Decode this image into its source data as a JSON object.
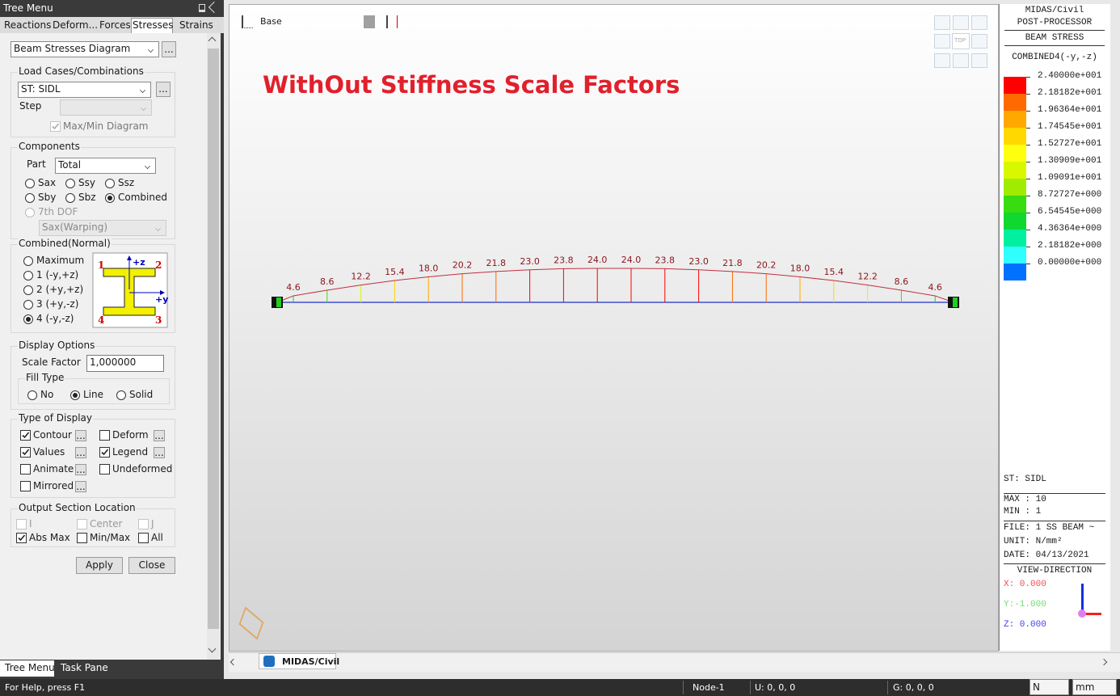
{
  "tree_menu": {
    "title": "Tree Menu",
    "tabs": [
      "Reactions",
      "Deform...",
      "Forces",
      "Stresses",
      "Strains"
    ],
    "active_tab": 3,
    "diagram_select": "Beam Stresses Diagram",
    "more": "...",
    "load_cases": {
      "legend": "Load Cases/Combinations",
      "select": "ST: SIDL",
      "step": "Step",
      "maxmin": "Max/Min Diagram",
      "maxmin_checked": true
    },
    "components": {
      "legend": "Components",
      "part": "Part",
      "part_select": "Total",
      "options": [
        "Sax",
        "Ssy",
        "Ssz",
        "Sby",
        "Sbz",
        "Combined"
      ],
      "selected": 5,
      "dof7": "7th DOF",
      "warping": "Sax(Warping)"
    },
    "combined": {
      "legend": "Combined(Normal)",
      "options": [
        "Maximum",
        "1 (-y,+z)",
        "2 (+y,+z)",
        "3 (+y,-z)",
        "4 (-y,-z)"
      ],
      "selected": 4,
      "corners": [
        "1",
        "2",
        "3",
        "4"
      ],
      "axes": [
        "+z",
        "+y"
      ]
    },
    "display": {
      "legend": "Display Options",
      "scale_label": "Scale Factor",
      "scale_value": "1,000000",
      "fill_legend": "Fill Type",
      "fill": [
        "No",
        "Line",
        "Solid"
      ],
      "fill_selected": 1
    },
    "type_of_display": {
      "legend": "Type of Display",
      "options": [
        "Contour",
        "Deform",
        "Values",
        "Legend",
        "Animate",
        "Undeformed",
        "Mirrored"
      ],
      "checked": [
        0,
        2,
        3
      ]
    },
    "output_location": {
      "legend": "Output Section Location",
      "options": [
        "I",
        "Center",
        "J",
        "Abs Max",
        "Min/Max",
        "All"
      ],
      "checked": [
        3
      ],
      "disabled": [
        0,
        1,
        2
      ]
    },
    "buttons": [
      "Apply",
      "Close"
    ],
    "bottom_tabs": [
      "Tree Menu",
      "Task Pane"
    ]
  },
  "viewport": {
    "layer": "Base",
    "view_cube": "TOP",
    "title": "WithOut Stiffness Scale Factors",
    "tab": "MIDAS/Civil",
    "diagram": {
      "values": [
        4.6,
        8.6,
        12.2,
        15.4,
        18,
        20.2,
        21.8,
        23,
        23.8,
        24,
        24,
        23.8,
        23,
        21.8,
        20.2,
        18,
        15.4,
        12.2,
        8.6,
        4.6
      ],
      "value_labels": [
        "4.6",
        "8.6",
        "12.2",
        "15.4",
        "18.0",
        "20.2",
        "21.8",
        "23.0",
        "23.8",
        "24.0",
        "24.0",
        "23.8",
        "23.0",
        "21.8",
        "20.2",
        "18.0",
        "15.4",
        "12.2",
        "8.6",
        "4.6"
      ]
    }
  },
  "legend_panel": {
    "program": "MIDAS/Civil",
    "module": "POST-PROCESSOR",
    "result": "BEAM STRESS",
    "component": "COMBINED4(-y,-z)",
    "labels": [
      "2.40000e+001",
      "2.18182e+001",
      "1.96364e+001",
      "1.74545e+001",
      "1.52727e+001",
      "1.30909e+001",
      "1.09091e+001",
      "8.72727e+000",
      "6.54545e+000",
      "4.36364e+000",
      "2.18182e+000",
      "0.00000e+000"
    ],
    "colors": [
      "#ff0000",
      "#ff6a00",
      "#ffa800",
      "#ffd800",
      "#ffff10",
      "#d8f800",
      "#a0ec00",
      "#38dc10",
      "#10d830",
      "#00f0a0",
      "#30ffff",
      "#0070ff"
    ],
    "load_case": "ST: SIDL",
    "max": "MAX : 10",
    "min": "MIN : 1",
    "file": "FILE: 1 SS BEAM ~",
    "unit": "UNIT: N/mm²",
    "date": "DATE: 04/13/2021",
    "view_direction": "VIEW-DIRECTION",
    "x": "X: 0.000",
    "y": "Y:-1.000",
    "z": "Z: 0.000"
  },
  "status_bar": {
    "help": "For Help, press F1",
    "node": "Node-1",
    "u": "U: 0, 0, 0",
    "g": "G: 0, 0, 0",
    "force_unit": "N",
    "length_unit": "mm"
  }
}
